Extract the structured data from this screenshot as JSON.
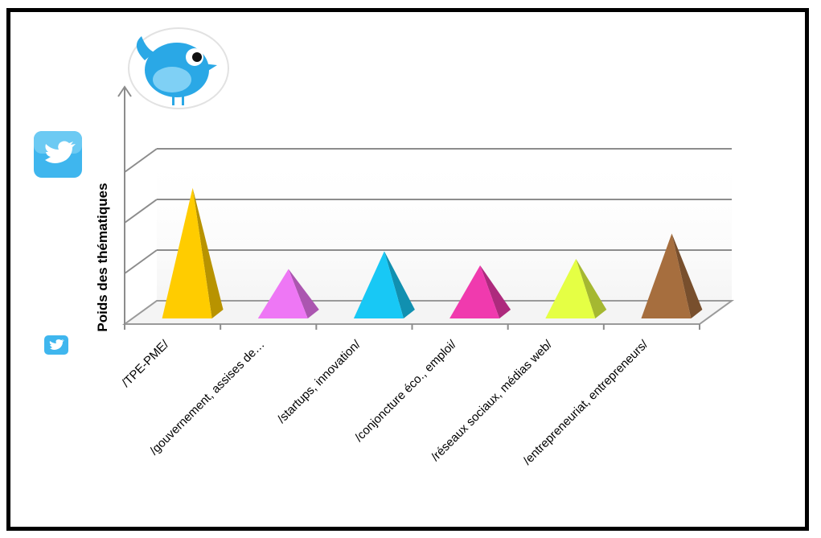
{
  "chart_data": {
    "type": "bar",
    "bar_shape": "pyramid-3d",
    "title": "",
    "ylabel": "Poids des thématiques",
    "xlabel": "",
    "categories": [
      "/TPE-PME/",
      "/gouvernement, assises de…",
      "/startups, innovation/",
      "/conjoncture éco., emploi/",
      "/réseaux sociaux, médias web/",
      "/entrepreneuriat, entrepreneurs/"
    ],
    "values": [
      2.45,
      0.85,
      1.2,
      0.92,
      1.05,
      1.55
    ],
    "ylim": [
      0,
      3
    ],
    "grid": true,
    "legend": "none",
    "colors": [
      "#FFCC00",
      "#EE77F5",
      "#18C8F5",
      "#F03AAE",
      "#E5FF44",
      "#A66E3E"
    ]
  },
  "decor": {
    "bird_icon": "twitter-bird-icon",
    "logo_icon": "twitter-logo-icon"
  }
}
